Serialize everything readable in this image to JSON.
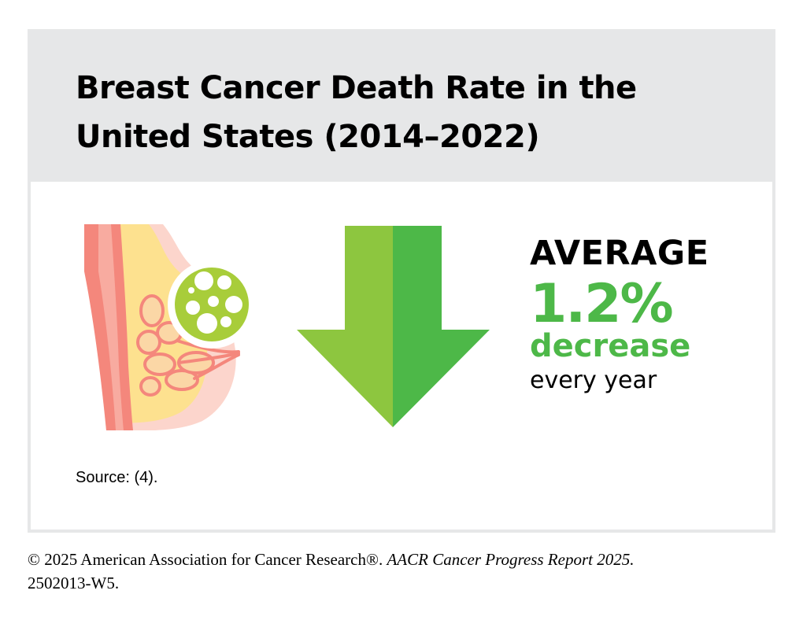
{
  "title": {
    "line1": "Breast Cancer Death Rate in the",
    "line2": "United States (2014–2022)"
  },
  "stat": {
    "label": "AVERAGE",
    "value": "1.2%",
    "direction": "decrease",
    "period": "every year"
  },
  "icons": {
    "illustration": "breast-tumor-illustration",
    "arrow": "down-arrow"
  },
  "source": "Source: (4).",
  "footer": {
    "copyright": "© 2025 American Association for Cancer Research®. ",
    "report": "AACR Cancer Progress Report 2025.",
    "code": "2502013-W5."
  },
  "colors": {
    "panel_background": "#e6e7e8",
    "accent_green": "#4db848",
    "arrow_light_green": "#8dc63f",
    "arrow_dark_green": "#4db848",
    "text": "#000000"
  }
}
